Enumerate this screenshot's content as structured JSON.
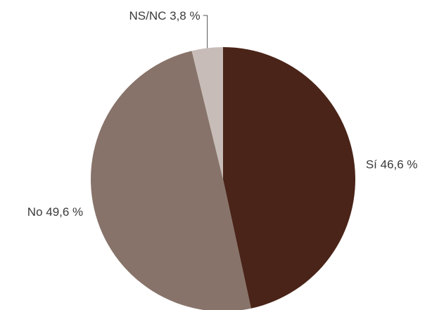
{
  "chart_data": {
    "type": "pie",
    "title": "",
    "slices": [
      {
        "label": "Sí",
        "value": 46.6,
        "value_text": "46,6 %",
        "color": "#4a2418"
      },
      {
        "label": "No",
        "value": 49.6,
        "value_text": "49,6 %",
        "color": "#87736a"
      },
      {
        "label": "NS/NC",
        "value": 3.8,
        "value_text": "3,8 %",
        "color": "#c8bcb8"
      }
    ],
    "start": "top",
    "direction": "clockwise",
    "legend": "none"
  }
}
